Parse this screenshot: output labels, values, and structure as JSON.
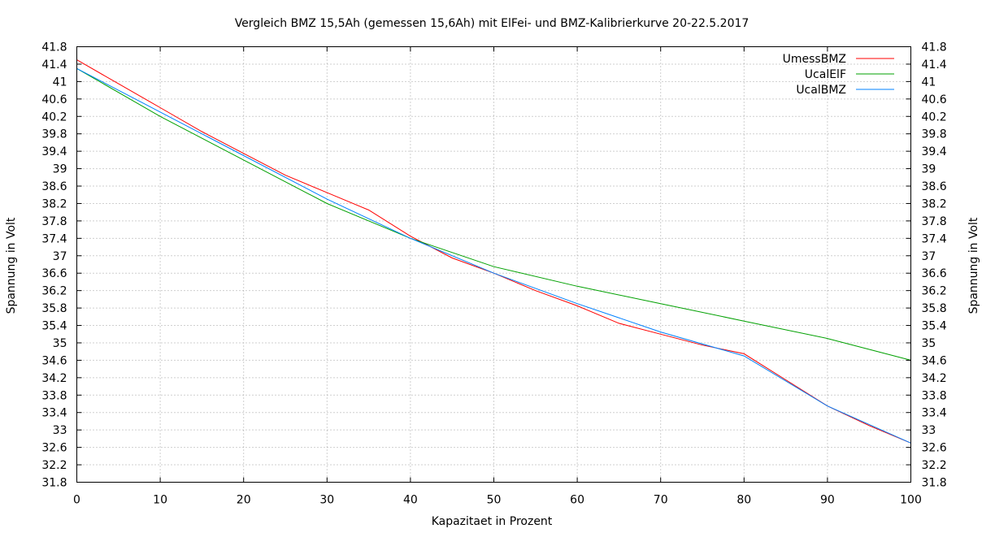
{
  "chart_data": {
    "type": "line",
    "title": "Vergleich BMZ 15,5Ah (gemessen 15,6Ah) mit ElFei- und BMZ-Kalibrierkurve 20-22.5.2017",
    "xlabel": "Kapazitaet in Prozent",
    "ylabel": "Spannung in Volt",
    "y2label": "Spannung in Volt",
    "xlim": [
      0,
      100
    ],
    "ylim": [
      31.8,
      41.8
    ],
    "x_ticks": [
      "0",
      "10",
      "20",
      "30",
      "40",
      "50",
      "60",
      "70",
      "80",
      "90",
      "100"
    ],
    "y_ticks": [
      "31.8",
      "32.2",
      "32.6",
      "33",
      "33.4",
      "33.8",
      "34.2",
      "34.6",
      "35",
      "35.4",
      "35.8",
      "36.2",
      "36.6",
      "37",
      "37.4",
      "37.8",
      "38.2",
      "38.6",
      "39",
      "39.4",
      "39.8",
      "40.2",
      "40.6",
      "41",
      "41.4",
      "41.8"
    ],
    "grid": true,
    "legend_position": "top-right",
    "series": [
      {
        "name": "UmessBMZ",
        "color": "#ff0000",
        "x": [
          0,
          5,
          10,
          15,
          20,
          25,
          30,
          35,
          40,
          45,
          50,
          55,
          60,
          65,
          70,
          75,
          80,
          85,
          90,
          95,
          100
        ],
        "y": [
          41.5,
          40.95,
          40.4,
          39.85,
          39.35,
          38.85,
          38.45,
          38.05,
          37.45,
          36.95,
          36.6,
          36.2,
          35.85,
          35.45,
          35.2,
          34.95,
          34.75,
          34.15,
          33.55,
          33.1,
          32.7
        ]
      },
      {
        "name": "UcalElF",
        "color": "#00a000",
        "x": [
          0,
          10,
          20,
          30,
          40,
          50,
          60,
          70,
          80,
          90,
          100
        ],
        "y": [
          41.3,
          40.2,
          39.2,
          38.2,
          37.4,
          36.75,
          36.3,
          35.9,
          35.5,
          35.1,
          34.6
        ]
      },
      {
        "name": "UcalBMZ",
        "color": "#0080ff",
        "x": [
          0,
          10,
          20,
          30,
          40,
          50,
          60,
          70,
          80,
          90,
          100
        ],
        "y": [
          41.3,
          40.3,
          39.3,
          38.3,
          37.4,
          36.6,
          35.9,
          35.25,
          34.7,
          33.55,
          32.7
        ]
      }
    ]
  }
}
